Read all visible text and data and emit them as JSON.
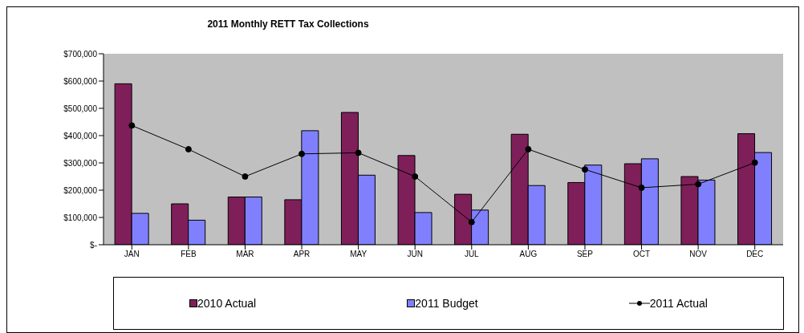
{
  "chart_data": {
    "type": "bar",
    "title": "2011 Monthly RETT Tax Collections",
    "categories": [
      "JAN",
      "FEB",
      "MAR",
      "APR",
      "MAY",
      "JUN",
      "JUL",
      "AUG",
      "SEP",
      "OCT",
      "NOV",
      "DEC"
    ],
    "series": [
      {
        "name": "2010 Actual",
        "color": "#7f1f5a",
        "values": [
          590000,
          150000,
          175000,
          165000,
          485000,
          327000,
          185000,
          405000,
          228000,
          297000,
          250000,
          407000
        ]
      },
      {
        "name": "2011 Budget",
        "color": "#8080ff",
        "values": [
          115000,
          90000,
          175000,
          418000,
          255000,
          118000,
          127000,
          217000,
          292000,
          315000,
          237000,
          338000
        ]
      },
      {
        "name": "2011 Actual",
        "type": "line",
        "color": "#000000",
        "values": [
          437000,
          350000,
          250000,
          333000,
          337000,
          250000,
          83000,
          350000,
          276000,
          209000,
          222000,
          301000
        ]
      }
    ],
    "ylim": [
      0,
      700000
    ],
    "yticks": [
      {
        "value": 0,
        "label": "$-"
      },
      {
        "value": 100000,
        "label": "$100,000"
      },
      {
        "value": 200000,
        "label": "$200,000"
      },
      {
        "value": 300000,
        "label": "$300,000"
      },
      {
        "value": 400000,
        "label": "$400,000"
      },
      {
        "value": 500000,
        "label": "$500,000"
      },
      {
        "value": 600000,
        "label": "$600,000"
      },
      {
        "value": 700000,
        "label": "$700,000"
      }
    ],
    "legend": "bottom",
    "marker": "circle",
    "line_style": "solid"
  }
}
